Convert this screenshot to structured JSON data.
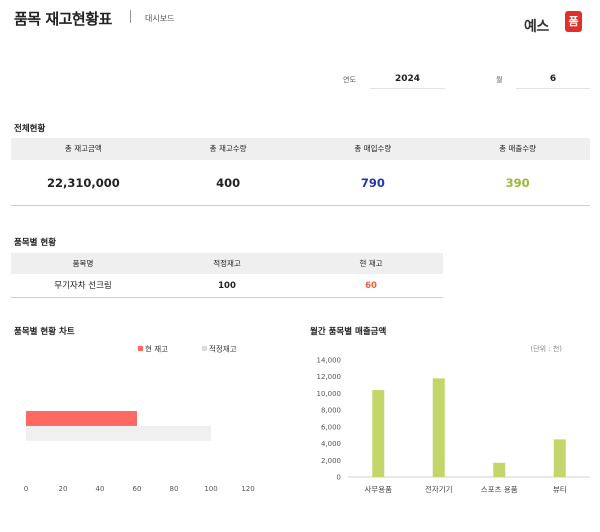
{
  "header": {
    "title": "품목 재고현황표",
    "subtitle": "대시보드",
    "logo_text": "예스",
    "logo_badge": "폼"
  },
  "filters": {
    "year_label": "연도",
    "year_value": "2024",
    "month_label": "월",
    "month_value": "6"
  },
  "overall": {
    "title": "전체현황",
    "columns": [
      "총 재고금액",
      "총 재고수량",
      "총 매입수량",
      "총 매출수량"
    ],
    "values": [
      "22,310,000",
      "400",
      "790",
      "390"
    ],
    "value_colors": [
      "#222222",
      "#222222",
      "#2533b8",
      "#9ab83a"
    ]
  },
  "items": {
    "title": "품목별 현황",
    "columns": [
      "품목명",
      "적정재고",
      "현 재고"
    ],
    "rows": [
      [
        "무기자차 선크림",
        "100",
        "60"
      ]
    ],
    "current_stock_color": "#e8603c"
  },
  "chart_data": [
    {
      "type": "bar",
      "orientation": "horizontal",
      "title": "품목별 현황 차트",
      "categories": [
        "무기자차 선크림"
      ],
      "series": [
        {
          "name": "현 재고",
          "values": [
            60
          ],
          "color": "#ff6b63"
        },
        {
          "name": "적정재고",
          "values": [
            100
          ],
          "color": "#f0f0f0"
        }
      ],
      "x_ticks": [
        0,
        20,
        40,
        60,
        80,
        100,
        120
      ],
      "xlim": [
        0,
        120
      ],
      "legend": "top"
    },
    {
      "type": "bar",
      "title": "월간 품목별 매출금액",
      "unit_note": "(단위 : 천)",
      "categories": [
        "사무용품",
        "전자기기",
        "스포츠 용품",
        "뷰티"
      ],
      "values": [
        10400,
        11800,
        1700,
        4500
      ],
      "color": "#c3d66a",
      "y_ticks": [
        "0",
        "2,000",
        "4,000",
        "6,000",
        "8,000",
        "10,000",
        "12,000",
        "14,000"
      ],
      "ylim": [
        0,
        14000
      ]
    }
  ]
}
